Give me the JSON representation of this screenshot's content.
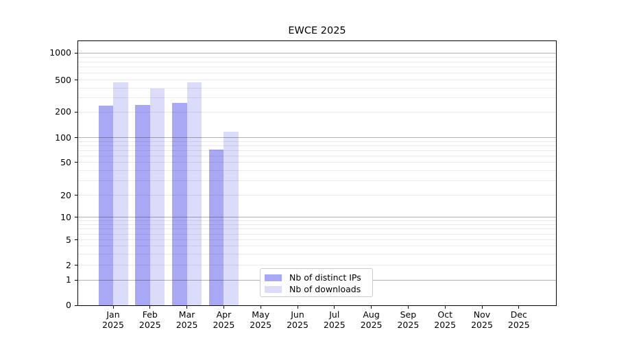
{
  "chart_data": {
    "type": "bar",
    "title": "EWCE 2025",
    "categories": [
      "Jan 2025",
      "Feb 2025",
      "Mar 2025",
      "Apr 2025",
      "May 2025",
      "Jun 2025",
      "Jul 2025",
      "Aug 2025",
      "Sep 2025",
      "Oct 2025",
      "Nov 2025",
      "Dec 2025"
    ],
    "series": [
      {
        "name": "Nb of distinct IPs",
        "color": "#a8a8f5",
        "values": [
          240,
          245,
          260,
          72,
          0,
          0,
          0,
          0,
          0,
          0,
          0,
          0
        ]
      },
      {
        "name": "Nb of downloads",
        "color": "#dbdbfa",
        "values": [
          465,
          395,
          465,
          118,
          0,
          0,
          0,
          0,
          0,
          0,
          0,
          0
        ]
      }
    ],
    "y_ticks": [
      1000,
      500,
      200,
      100,
      50,
      20,
      10,
      5,
      2,
      1,
      0
    ],
    "y_major_gridlines": [
      1000,
      100,
      10,
      1
    ],
    "y_minor_gridlines": [
      900,
      800,
      700,
      600,
      400,
      300,
      90,
      80,
      70,
      60,
      40,
      30,
      9,
      8,
      7,
      6,
      4,
      3
    ],
    "y_scale": "symlog",
    "ylim": [
      0,
      1400
    ],
    "grid": "on",
    "legend_position": "lower center (inside axes)",
    "scale_anchors": [
      [
        1000,
        0.0452
      ],
      [
        500,
        0.1473
      ],
      [
        200,
        0.2683
      ],
      [
        100,
        0.3655
      ],
      [
        50,
        0.459
      ],
      [
        20,
        0.5844
      ],
      [
        10,
        0.6667
      ],
      [
        5,
        0.7532
      ],
      [
        2,
        0.8486
      ],
      [
        1,
        0.9047
      ],
      [
        0,
        1.0
      ]
    ]
  }
}
